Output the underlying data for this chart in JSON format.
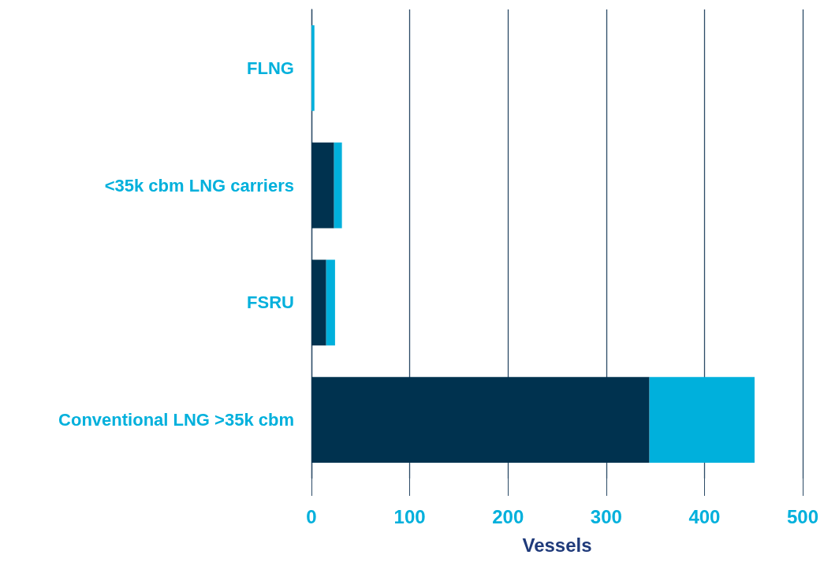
{
  "chart_data": {
    "type": "bar",
    "orientation": "horizontal",
    "stacked": true,
    "xlabel": "Vessels",
    "categories": [
      "FLNG",
      "<35k cbm LNG carriers",
      "FSRU",
      "Conventional LNG >35k cbm"
    ],
    "series": [
      {
        "color": "#00324f",
        "values": [
          0,
          23,
          15,
          344
        ]
      },
      {
        "color": "#00b0dc",
        "values": [
          3,
          8,
          9,
          107
        ]
      }
    ],
    "xlim": [
      0,
      500
    ],
    "xticks": [
      0,
      100,
      200,
      300,
      400,
      500
    ],
    "grid": "x"
  }
}
